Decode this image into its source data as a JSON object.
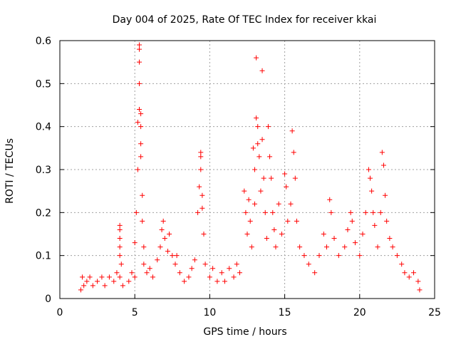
{
  "chart_data": {
    "type": "scatter",
    "title": "Day 004 of 2025, Rate Of TEC Index for receiver kkai",
    "xlabel": "GPS time / hours",
    "ylabel": "ROTI / TECUs",
    "xlim": [
      0,
      25
    ],
    "ylim": [
      0,
      0.6
    ],
    "x_ticks": [
      "0",
      "5",
      "10",
      "15",
      "20",
      "25"
    ],
    "y_ticks": [
      "0",
      "0.1",
      "0.2",
      "0.3",
      "0.4",
      "0.5",
      "0.6"
    ],
    "grid": true,
    "marker": "+",
    "color": "#ff0000",
    "points": [
      [
        1.4,
        0.02
      ],
      [
        1.5,
        0.05
      ],
      [
        1.6,
        0.03
      ],
      [
        1.8,
        0.04
      ],
      [
        2.0,
        0.05
      ],
      [
        2.2,
        0.03
      ],
      [
        2.5,
        0.04
      ],
      [
        2.8,
        0.05
      ],
      [
        3.0,
        0.03
      ],
      [
        3.3,
        0.05
      ],
      [
        3.6,
        0.04
      ],
      [
        3.8,
        0.06
      ],
      [
        4.0,
        0.05
      ],
      [
        4.2,
        0.03
      ],
      [
        4.0,
        0.17
      ],
      [
        4.0,
        0.16
      ],
      [
        4.0,
        0.14
      ],
      [
        4.0,
        0.12
      ],
      [
        4.0,
        0.1
      ],
      [
        4.1,
        0.08
      ],
      [
        4.6,
        0.04
      ],
      [
        4.8,
        0.06
      ],
      [
        5.0,
        0.05
      ],
      [
        5.0,
        0.13
      ],
      [
        5.1,
        0.2
      ],
      [
        5.2,
        0.3
      ],
      [
        5.2,
        0.41
      ],
      [
        5.3,
        0.44
      ],
      [
        5.3,
        0.59
      ],
      [
        5.3,
        0.58
      ],
      [
        5.3,
        0.55
      ],
      [
        5.3,
        0.5
      ],
      [
        5.4,
        0.43
      ],
      [
        5.4,
        0.4
      ],
      [
        5.4,
        0.36
      ],
      [
        5.4,
        0.33
      ],
      [
        5.5,
        0.24
      ],
      [
        5.5,
        0.18
      ],
      [
        5.6,
        0.12
      ],
      [
        5.6,
        0.08
      ],
      [
        5.8,
        0.06
      ],
      [
        6.0,
        0.07
      ],
      [
        6.2,
        0.05
      ],
      [
        6.5,
        0.09
      ],
      [
        6.7,
        0.12
      ],
      [
        6.8,
        0.16
      ],
      [
        6.9,
        0.18
      ],
      [
        7.0,
        0.14
      ],
      [
        7.2,
        0.11
      ],
      [
        7.3,
        0.15
      ],
      [
        7.5,
        0.1
      ],
      [
        7.7,
        0.08
      ],
      [
        7.8,
        0.1
      ],
      [
        8.0,
        0.06
      ],
      [
        8.3,
        0.04
      ],
      [
        8.6,
        0.05
      ],
      [
        8.8,
        0.07
      ],
      [
        9.0,
        0.09
      ],
      [
        9.2,
        0.2
      ],
      [
        9.3,
        0.26
      ],
      [
        9.4,
        0.34
      ],
      [
        9.4,
        0.33
      ],
      [
        9.4,
        0.3
      ],
      [
        9.5,
        0.24
      ],
      [
        9.5,
        0.21
      ],
      [
        9.6,
        0.15
      ],
      [
        9.7,
        0.08
      ],
      [
        10.0,
        0.05
      ],
      [
        10.2,
        0.07
      ],
      [
        10.5,
        0.04
      ],
      [
        10.8,
        0.06
      ],
      [
        11.0,
        0.04
      ],
      [
        11.3,
        0.07
      ],
      [
        11.6,
        0.05
      ],
      [
        11.8,
        0.08
      ],
      [
        12.0,
        0.06
      ],
      [
        12.3,
        0.25
      ],
      [
        12.4,
        0.2
      ],
      [
        12.5,
        0.15
      ],
      [
        12.6,
        0.23
      ],
      [
        12.7,
        0.18
      ],
      [
        12.8,
        0.12
      ],
      [
        12.9,
        0.35
      ],
      [
        13.0,
        0.3
      ],
      [
        13.0,
        0.22
      ],
      [
        13.1,
        0.56
      ],
      [
        13.1,
        0.42
      ],
      [
        13.2,
        0.4
      ],
      [
        13.2,
        0.36
      ],
      [
        13.3,
        0.33
      ],
      [
        13.4,
        0.25
      ],
      [
        13.5,
        0.53
      ],
      [
        13.5,
        0.37
      ],
      [
        13.6,
        0.28
      ],
      [
        13.7,
        0.2
      ],
      [
        13.8,
        0.14
      ],
      [
        13.9,
        0.4
      ],
      [
        14.0,
        0.33
      ],
      [
        14.1,
        0.28
      ],
      [
        14.2,
        0.2
      ],
      [
        14.3,
        0.16
      ],
      [
        14.4,
        0.12
      ],
      [
        14.6,
        0.22
      ],
      [
        14.8,
        0.15
      ],
      [
        15.0,
        0.29
      ],
      [
        15.1,
        0.26
      ],
      [
        15.2,
        0.18
      ],
      [
        15.4,
        0.22
      ],
      [
        15.5,
        0.39
      ],
      [
        15.6,
        0.34
      ],
      [
        15.7,
        0.28
      ],
      [
        15.8,
        0.18
      ],
      [
        16.0,
        0.12
      ],
      [
        16.3,
        0.1
      ],
      [
        16.6,
        0.08
      ],
      [
        17.0,
        0.06
      ],
      [
        17.3,
        0.1
      ],
      [
        17.6,
        0.15
      ],
      [
        17.8,
        0.12
      ],
      [
        18.0,
        0.23
      ],
      [
        18.1,
        0.2
      ],
      [
        18.3,
        0.14
      ],
      [
        18.6,
        0.1
      ],
      [
        19.0,
        0.12
      ],
      [
        19.2,
        0.16
      ],
      [
        19.4,
        0.2
      ],
      [
        19.5,
        0.18
      ],
      [
        19.7,
        0.13
      ],
      [
        20.0,
        0.1
      ],
      [
        20.2,
        0.15
      ],
      [
        20.4,
        0.2
      ],
      [
        20.6,
        0.3
      ],
      [
        20.7,
        0.28
      ],
      [
        20.8,
        0.25
      ],
      [
        20.9,
        0.2
      ],
      [
        21.0,
        0.17
      ],
      [
        21.2,
        0.12
      ],
      [
        21.4,
        0.2
      ],
      [
        21.5,
        0.34
      ],
      [
        21.6,
        0.31
      ],
      [
        21.7,
        0.24
      ],
      [
        21.8,
        0.18
      ],
      [
        22.0,
        0.14
      ],
      [
        22.2,
        0.12
      ],
      [
        22.5,
        0.1
      ],
      [
        22.8,
        0.08
      ],
      [
        23.0,
        0.06
      ],
      [
        23.3,
        0.05
      ],
      [
        23.6,
        0.06
      ],
      [
        23.9,
        0.04
      ],
      [
        24.0,
        0.02
      ]
    ]
  }
}
